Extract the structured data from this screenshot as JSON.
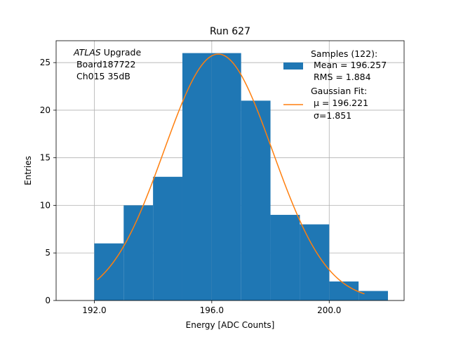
{
  "chart_data": {
    "type": "bar",
    "title": "Run 627",
    "xlabel": "Energy [ADC Counts]",
    "ylabel": "Entries",
    "xlim": [
      190.7,
      202.55
    ],
    "ylim": [
      0,
      27.3
    ],
    "grid": true,
    "x_ticks": [
      192,
      196,
      200
    ],
    "x_tick_labels": [
      "192.0",
      "196.0",
      "200.0"
    ],
    "y_ticks": [
      0,
      5,
      10,
      15,
      20,
      25
    ],
    "y_tick_labels": [
      "0",
      "5",
      "10",
      "15",
      "20",
      "25"
    ],
    "bin_edges": [
      192,
      193,
      194,
      195,
      196,
      197,
      198,
      199,
      200,
      201,
      202
    ],
    "counts": [
      6,
      10,
      13,
      26,
      26,
      21,
      9,
      8,
      2,
      1
    ],
    "series": [
      {
        "name": "Samples (122):",
        "type": "histogram",
        "color": "#1f77b4",
        "stats": {
          "mean": 196.257,
          "rms": 1.884,
          "entries": 122
        }
      },
      {
        "name": "Gaussian Fit:",
        "type": "line",
        "color": "#ff7f0e",
        "fit": {
          "mu": 196.221,
          "sigma": 1.851,
          "amplitude": 25.9,
          "x_min": 192.1,
          "x_max": 201.2
        }
      }
    ],
    "legend": {
      "placement": "top-right",
      "entries": [
        {
          "series": 0,
          "lines": [
            "Samples (122):",
            " Mean = 196.257",
            " RMS = 1.884"
          ]
        },
        {
          "series": 1,
          "lines": [
            "Gaussian Fit:",
            " μ = 196.221",
            " σ=1.851"
          ]
        }
      ]
    },
    "annotation": {
      "placement": "top-left",
      "lines": [
        "ATLAS",
        " Upgrade",
        " Board187722",
        " Ch015 35dB"
      ]
    }
  }
}
